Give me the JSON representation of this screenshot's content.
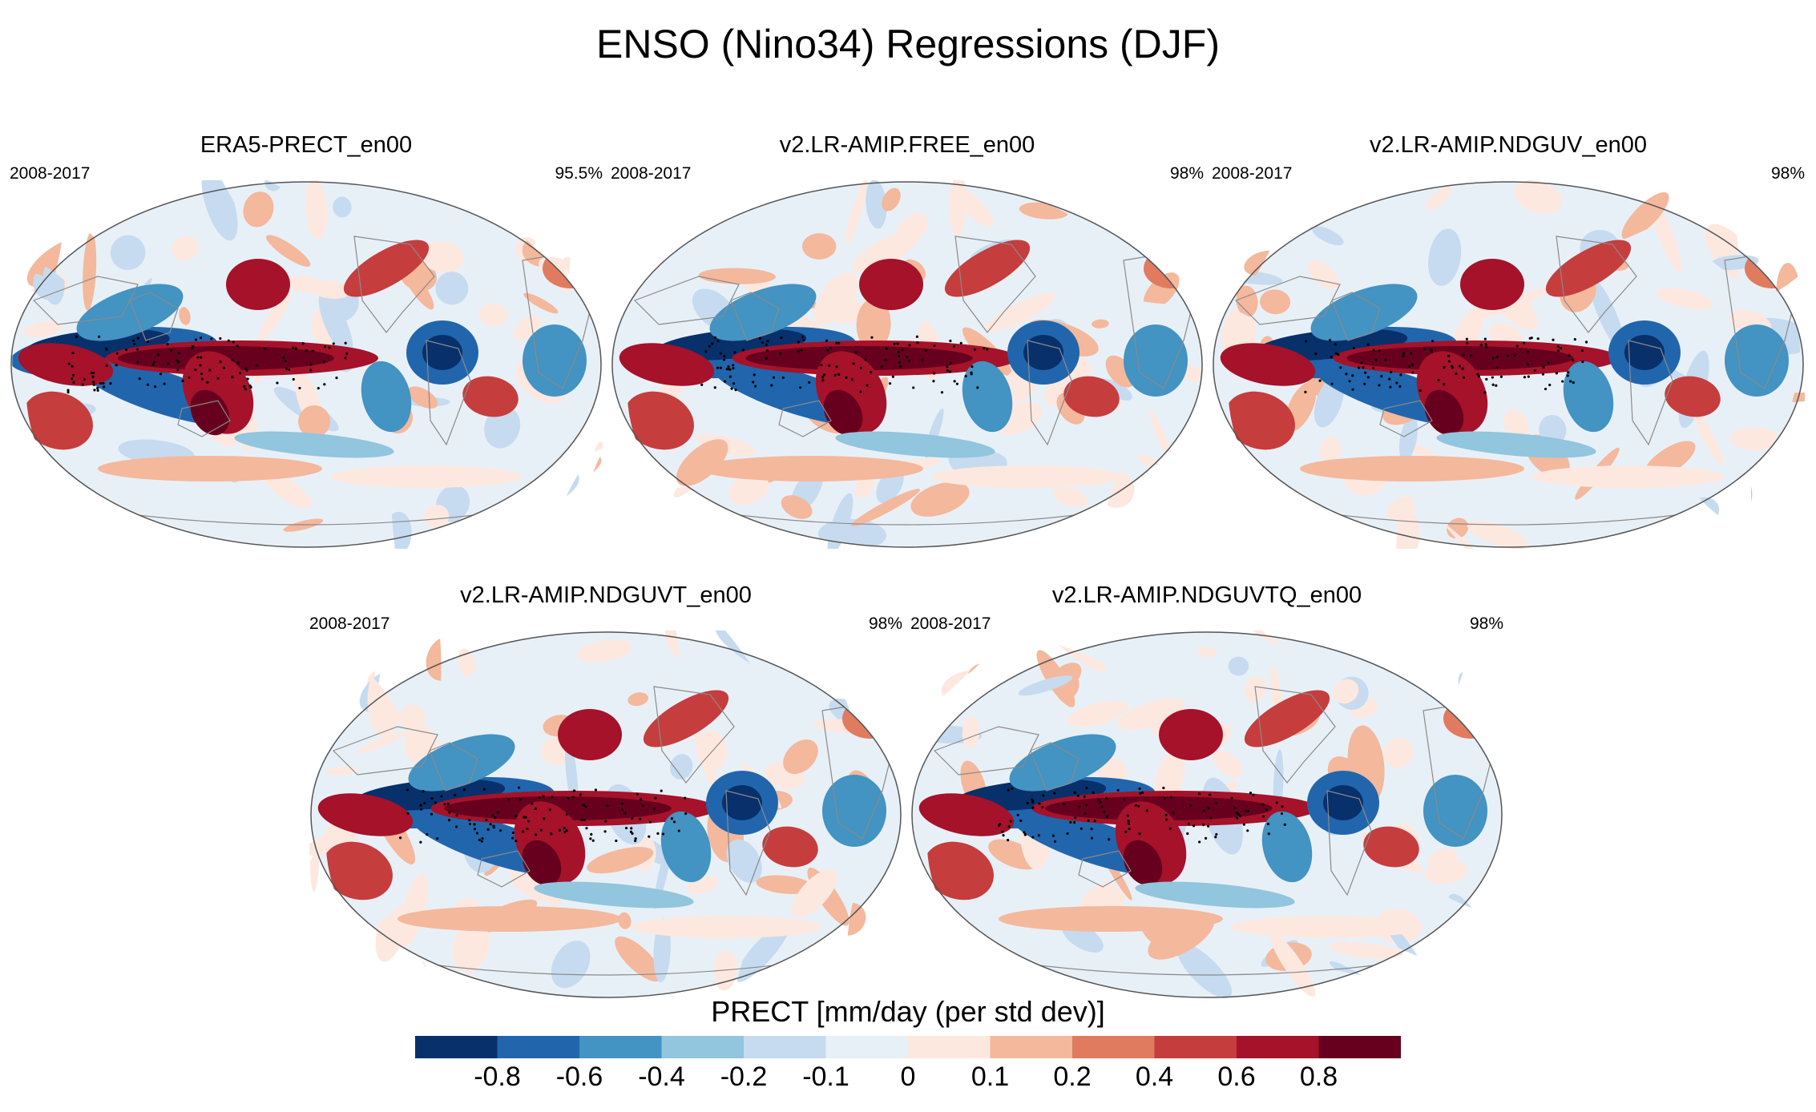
{
  "title": "ENSO (Nino34) Regressions (DJF)",
  "panels": [
    {
      "name": "ERA5-PRECT_en00",
      "years": "2008-2017",
      "pct": "95.5%"
    },
    {
      "name": "v2.LR-AMIP.FREE_en00",
      "years": "2008-2017",
      "pct": "98%"
    },
    {
      "name": "v2.LR-AMIP.NDGUV_en00",
      "years": "2008-2017",
      "pct": "98%"
    },
    {
      "name": "v2.LR-AMIP.NDGUVT_en00",
      "years": "2008-2017",
      "pct": "98%"
    },
    {
      "name": "v2.LR-AMIP.NDGUVTQ_en00",
      "years": "2008-2017",
      "pct": "98%"
    }
  ],
  "chart_data": {
    "type": "heatmap",
    "projection": "Robinson (global), Pacific-centered",
    "variable": "PRECT",
    "units": "mm/day (per std dev)",
    "colorbar_title": "PRECT [mm/day (per std dev)]",
    "levels": [
      "-0.8",
      "-0.6",
      "-0.4",
      "-0.2",
      "-0.1",
      "0",
      "0.1",
      "0.2",
      "0.4",
      "0.6",
      "0.8"
    ],
    "colors": [
      "#08306b",
      "#2166ac",
      "#4393c3",
      "#92c5de",
      "#c6dbef",
      "#e8f0f7",
      "#fde8e0",
      "#f4b89c",
      "#e07b5f",
      "#c63d3d",
      "#a5122a",
      "#67001f"
    ],
    "stippling": "significant at 95%"
  }
}
